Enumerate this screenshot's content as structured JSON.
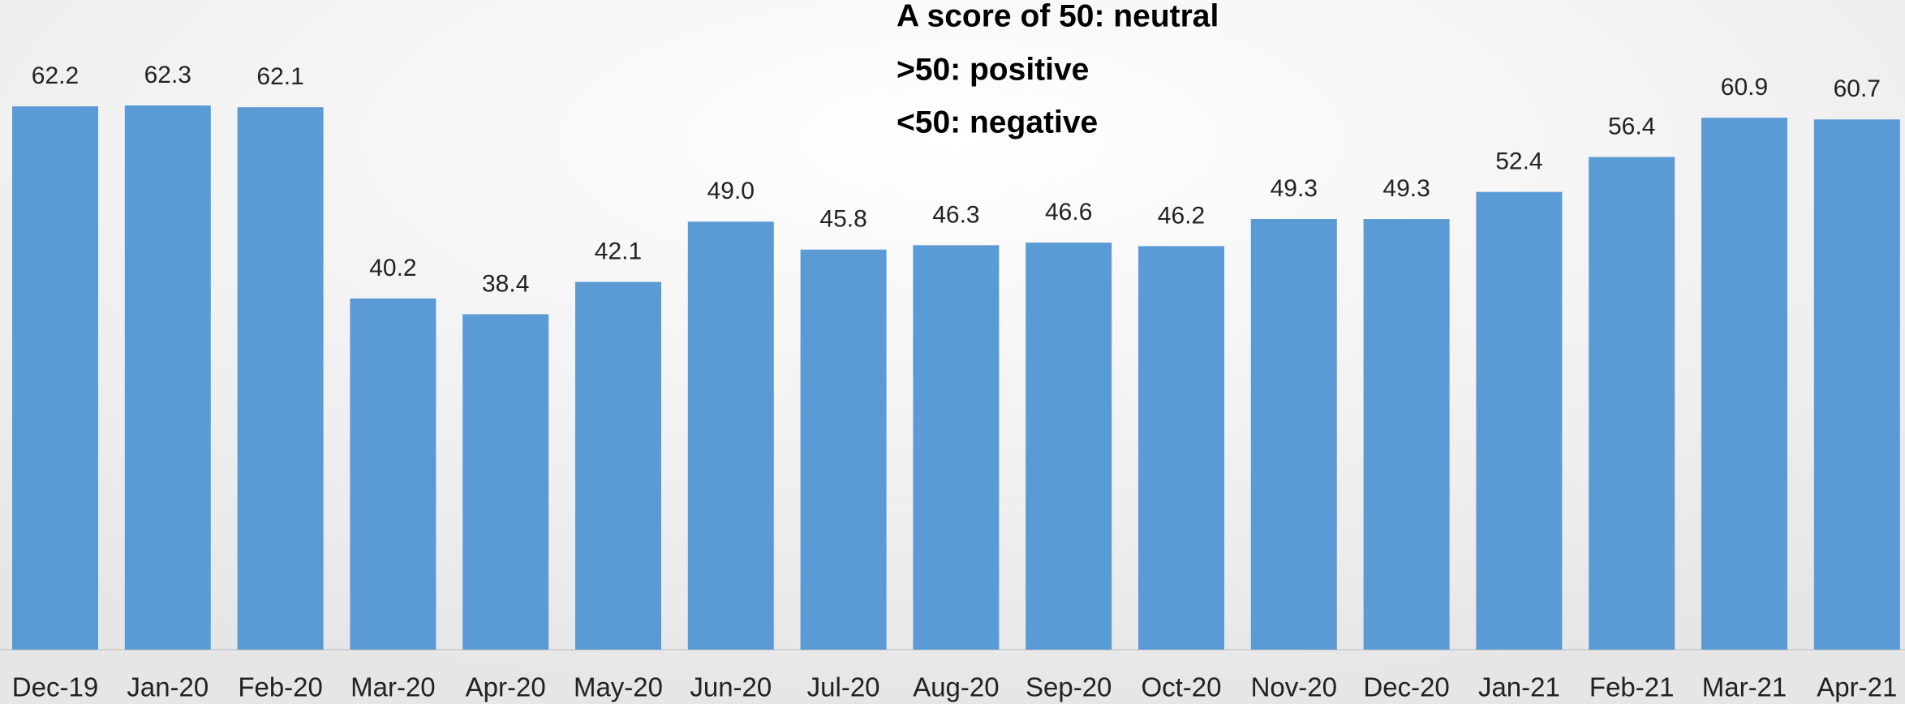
{
  "chart_data": {
    "type": "bar",
    "annotations": [
      "A score of 50: neutral",
      ">50: positive",
      "<50: negative"
    ],
    "categories": [
      "Dec-19",
      "Jan-20",
      "Feb-20",
      "Mar-20",
      "Apr-20",
      "May-20",
      "Jun-20",
      "Jul-20",
      "Aug-20",
      "Sep-20",
      "Oct-20",
      "Nov-20",
      "Dec-20",
      "Jan-21",
      "Feb-21",
      "Mar-21",
      "Apr-21"
    ],
    "values": [
      62.2,
      62.3,
      62.1,
      40.2,
      38.4,
      42.1,
      49.0,
      45.8,
      46.3,
      46.6,
      46.2,
      49.3,
      49.3,
      52.4,
      56.4,
      60.9,
      60.7
    ],
    "value_labels": [
      "62.2",
      "62.3",
      "62.1",
      "40.2",
      "38.4",
      "42.1",
      "49.0",
      "45.8",
      "46.3",
      "46.6",
      "46.2",
      "49.3",
      "49.3",
      "52.4",
      "56.4",
      "60.9",
      "60.7"
    ],
    "color": "#5b9bd5"
  }
}
